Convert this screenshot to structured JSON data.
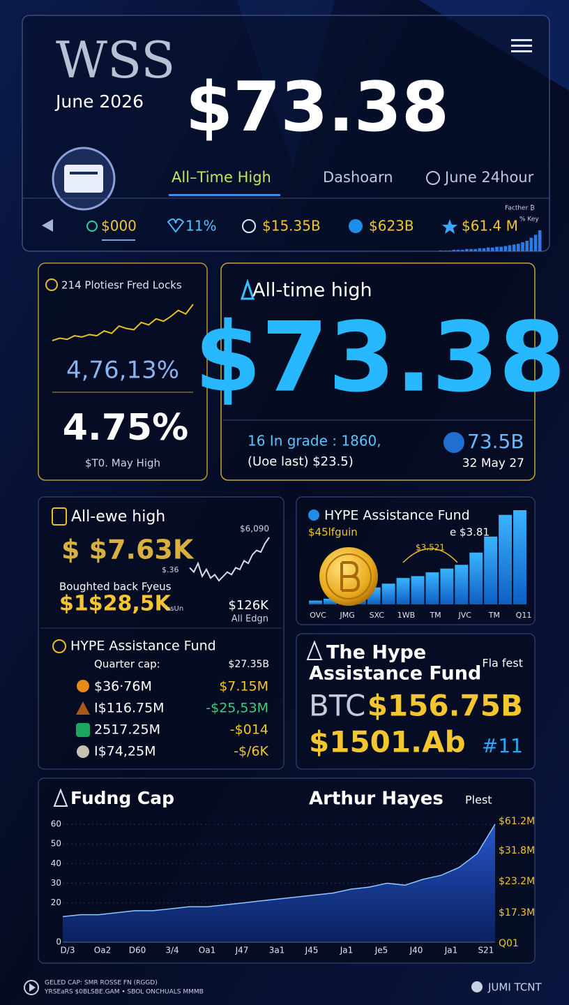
{
  "header": {
    "logo": "WSS",
    "date": "June 2026",
    "price": "$73.38",
    "tabs": [
      "All–Time High",
      "Dashoarn",
      "June 24hour"
    ]
  },
  "ticker": {
    "items": [
      "$000",
      "11%",
      "$15.35B",
      "$623B",
      "$61.4 M"
    ],
    "corner_labels": [
      "Facther ₿",
      "% Key"
    ],
    "mini_bars": [
      1,
      1,
      1,
      2,
      2,
      2,
      3,
      3,
      3,
      4,
      4,
      5,
      5,
      6,
      6,
      7,
      8,
      9,
      10,
      12,
      14,
      18,
      22,
      28
    ]
  },
  "panel_locks": {
    "title": "214 Plotiesr Fred Locks",
    "sparkline": [
      10,
      12,
      11,
      14,
      13,
      15,
      14,
      18,
      16,
      22,
      20,
      19,
      25,
      23,
      28,
      26,
      30,
      35,
      32,
      40
    ],
    "value_1": "4,76,13%",
    "value_2": "4.75%",
    "caption": "$T0. May High"
  },
  "panel_ath": {
    "title": "All-time high",
    "price": "$73.38",
    "grade": "16 In grade : 1860,",
    "last": "(Uoe last) $23.5)",
    "cap": "73.5B",
    "date": "32 May 27"
  },
  "panel_buyback": {
    "title": "All-ewe high",
    "price": "$ $7.63K",
    "peak": "$6,090",
    "note_small": "$.36",
    "label": "Boughted back Fyeus",
    "amount": "$1$28,5K",
    "unit": "bsUn",
    "side_value": "$126K",
    "side_label": "All Edgn",
    "sparkline": [
      20,
      15,
      25,
      10,
      18,
      8,
      12,
      5,
      10,
      15,
      12,
      20,
      18,
      28,
      25,
      35,
      40,
      38,
      48,
      55
    ]
  },
  "panel_fund_list": {
    "title": "HYPE Assistance Fund",
    "cap_label": "Quarter cap:",
    "cap_value": "$27.35B",
    "rows": [
      [
        "$36·76M",
        "$7.15M"
      ],
      [
        "I$116.75M",
        "-$25,53M"
      ],
      [
        "2517.25M",
        "-$014"
      ],
      [
        "I$74,25M",
        "-$/6K"
      ]
    ]
  },
  "panel_fund_bars": {
    "title": "HYPE Assistance Fund",
    "subtitle": "$45lfguin",
    "right_value": "e $3.81",
    "peak_label": "$3.521",
    "bars": [
      4,
      6,
      8,
      12,
      18,
      22,
      28,
      30,
      34,
      38,
      42,
      55,
      72,
      95,
      100
    ],
    "x_labels": [
      "OVC",
      "JMG",
      "SXC",
      "1WB",
      "TM",
      "JVC",
      "TM",
      "Q11"
    ]
  },
  "panel_btc": {
    "title_lines": [
      "The Hype",
      "Assistance Fund"
    ],
    "tag": "Fla fest",
    "symbol": "BTC",
    "value": "$156.75B",
    "amount": "$1501.Ab",
    "rank": "#11"
  },
  "funding_chart": {
    "title": "Fudng Cap",
    "subtitle": "Arthur Hayes",
    "tag": "Plest",
    "ylim": [
      0,
      60
    ],
    "yticks": [
      0,
      20,
      30,
      40,
      50,
      60
    ],
    "grid": true,
    "x_labels": [
      "D/3",
      "Oa2",
      "D60",
      "3/4",
      "Oa1",
      "J47",
      "3a1",
      "J45",
      "Ja1",
      "Je5",
      "J40",
      "Ja1",
      "S21"
    ],
    "right_labels": [
      "$61.2M",
      "$31.8M",
      "$23.2M",
      "$17.3M",
      "Q01"
    ],
    "values": [
      13,
      14,
      14,
      15,
      16,
      16,
      17,
      18,
      18,
      19,
      20,
      21,
      22,
      23,
      24,
      25,
      27,
      28,
      30,
      29,
      32,
      34,
      38,
      45,
      60
    ]
  },
  "footer": {
    "lines": [
      "GELED CAP: SMR ROSSE FN (RGGD)",
      "YRSEaRS $0BLSBE.GAM • SBOL ONCHUALS MMMB"
    ],
    "brand": "JUMI TCNT"
  }
}
